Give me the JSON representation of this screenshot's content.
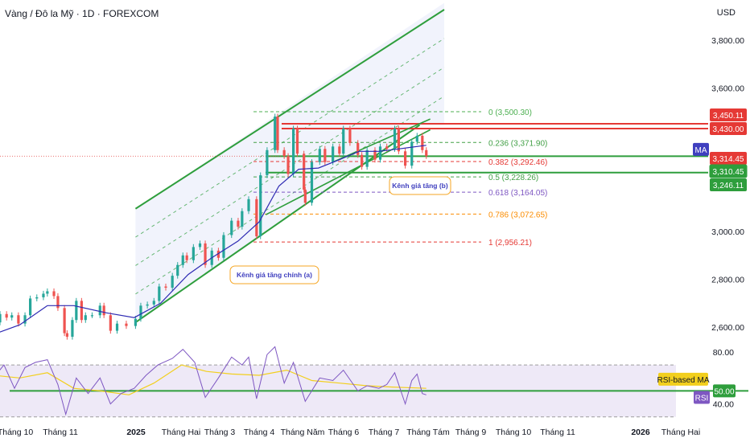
{
  "header": {
    "title": "Vàng / Đô la Mỹ · 1D · FOREXCOM",
    "currency": "USD"
  },
  "chart_data": [
    {
      "type": "line",
      "panel": "price",
      "xlabel": "",
      "ylabel": "",
      "y_axis_ticks": [
        "3,800.00",
        "3,600.00",
        "3,000.00",
        "2,800.00",
        "2,600.00"
      ],
      "y_axis_tick_values": [
        3800,
        3600,
        3000,
        2800,
        2600
      ],
      "ylim": [
        2540,
        3880
      ],
      "x_axis_labels": [
        "Tháng 10",
        "Tháng 11",
        "2025",
        "Tháng Hai",
        "Tháng 3",
        "Tháng 4",
        "Tháng Năm",
        "Tháng 6",
        "Tháng 7",
        "Tháng Tám",
        "Tháng 9",
        "Tháng 10",
        "Tháng 11",
        "2026",
        "Tháng Hai"
      ],
      "bold_x_labels": [
        "2025",
        "2026"
      ],
      "price_series": [
        {
          "d": "2024-09-20",
          "c": 2620
        },
        {
          "d": "2024-09-25",
          "c": 2655
        },
        {
          "d": "2024-09-30",
          "c": 2640
        },
        {
          "d": "2024-10-04",
          "c": 2650
        },
        {
          "d": "2024-10-09",
          "c": 2615
        },
        {
          "d": "2024-10-14",
          "c": 2650
        },
        {
          "d": "2024-10-18",
          "c": 2720
        },
        {
          "d": "2024-10-23",
          "c": 2725
        },
        {
          "d": "2024-10-28",
          "c": 2740
        },
        {
          "d": "2024-10-31",
          "c": 2750
        },
        {
          "d": "2024-11-05",
          "c": 2730
        },
        {
          "d": "2024-11-08",
          "c": 2680
        },
        {
          "d": "2024-11-13",
          "c": 2575
        },
        {
          "d": "2024-11-15",
          "c": 2560
        },
        {
          "d": "2024-11-19",
          "c": 2630
        },
        {
          "d": "2024-11-22",
          "c": 2710
        },
        {
          "d": "2024-11-26",
          "c": 2630
        },
        {
          "d": "2024-11-29",
          "c": 2650
        },
        {
          "d": "2024-12-04",
          "c": 2650
        },
        {
          "d": "2024-12-10",
          "c": 2690
        },
        {
          "d": "2024-12-13",
          "c": 2650
        },
        {
          "d": "2024-12-18",
          "c": 2585
        },
        {
          "d": "2024-12-23",
          "c": 2615
        },
        {
          "d": "2024-12-30",
          "c": 2605
        },
        {
          "d": "2025-01-06",
          "c": 2635
        },
        {
          "d": "2025-01-10",
          "c": 2690
        },
        {
          "d": "2025-01-15",
          "c": 2695
        },
        {
          "d": "2025-01-20",
          "c": 2710
        },
        {
          "d": "2025-01-24",
          "c": 2770
        },
        {
          "d": "2025-01-29",
          "c": 2765
        },
        {
          "d": "2025-02-03",
          "c": 2815
        },
        {
          "d": "2025-02-07",
          "c": 2860
        },
        {
          "d": "2025-02-11",
          "c": 2900
        },
        {
          "d": "2025-02-14",
          "c": 2880
        },
        {
          "d": "2025-02-19",
          "c": 2935
        },
        {
          "d": "2025-02-24",
          "c": 2950
        },
        {
          "d": "2025-02-28",
          "c": 2860
        },
        {
          "d": "2025-03-05",
          "c": 2920
        },
        {
          "d": "2025-03-10",
          "c": 2890
        },
        {
          "d": "2025-03-14",
          "c": 2985
        },
        {
          "d": "2025-03-20",
          "c": 3045
        },
        {
          "d": "2025-03-25",
          "c": 3020
        },
        {
          "d": "2025-03-28",
          "c": 3085
        },
        {
          "d": "2025-04-02",
          "c": 3135
        },
        {
          "d": "2025-04-08",
          "c": 2980
        },
        {
          "d": "2025-04-11",
          "c": 3235
        },
        {
          "d": "2025-04-16",
          "c": 3340
        },
        {
          "d": "2025-04-22",
          "c": 3480
        },
        {
          "d": "2025-04-24",
          "c": 3340
        },
        {
          "d": "2025-04-29",
          "c": 3315
        },
        {
          "d": "2025-05-02",
          "c": 3240
        },
        {
          "d": "2025-05-06",
          "c": 3430
        },
        {
          "d": "2025-05-09",
          "c": 3325
        },
        {
          "d": "2025-05-14",
          "c": 3175
        },
        {
          "d": "2025-05-15",
          "c": 3120
        },
        {
          "d": "2025-05-20",
          "c": 3290
        },
        {
          "d": "2025-05-26",
          "c": 3345
        },
        {
          "d": "2025-05-30",
          "c": 3290
        },
        {
          "d": "2025-06-05",
          "c": 3355
        },
        {
          "d": "2025-06-10",
          "c": 3325
        },
        {
          "d": "2025-06-13",
          "c": 3430
        },
        {
          "d": "2025-06-18",
          "c": 3370
        },
        {
          "d": "2025-06-24",
          "c": 3320
        },
        {
          "d": "2025-06-27",
          "c": 3270
        },
        {
          "d": "2025-07-01",
          "c": 3340
        },
        {
          "d": "2025-07-07",
          "c": 3300
        },
        {
          "d": "2025-07-11",
          "c": 3355
        },
        {
          "d": "2025-07-16",
          "c": 3345
        },
        {
          "d": "2025-07-22",
          "c": 3430
        },
        {
          "d": "2025-07-25",
          "c": 3335
        },
        {
          "d": "2025-07-30",
          "c": 3275
        },
        {
          "d": "2025-08-04",
          "c": 3375
        },
        {
          "d": "2025-08-08",
          "c": 3400
        },
        {
          "d": "2025-08-12",
          "c": 3340
        },
        {
          "d": "2025-08-15",
          "c": 3315
        }
      ],
      "ma_series": [
        {
          "d": "2024-09-20",
          "v": 2570
        },
        {
          "d": "2024-10-10",
          "v": 2610
        },
        {
          "d": "2024-10-31",
          "v": 2690
        },
        {
          "d": "2024-11-20",
          "v": 2690
        },
        {
          "d": "2024-12-15",
          "v": 2660
        },
        {
          "d": "2025-01-05",
          "v": 2640
        },
        {
          "d": "2025-01-25",
          "v": 2700
        },
        {
          "d": "2025-02-15",
          "v": 2820
        },
        {
          "d": "2025-03-05",
          "v": 2890
        },
        {
          "d": "2025-03-25",
          "v": 2960
        },
        {
          "d": "2025-04-10",
          "v": 3040
        },
        {
          "d": "2025-04-25",
          "v": 3190
        },
        {
          "d": "2025-05-10",
          "v": 3260
        },
        {
          "d": "2025-05-25",
          "v": 3265
        },
        {
          "d": "2025-06-10",
          "v": 3300
        },
        {
          "d": "2025-06-25",
          "v": 3335
        },
        {
          "d": "2025-07-10",
          "v": 3335
        },
        {
          "d": "2025-07-25",
          "v": 3345
        },
        {
          "d": "2025-08-15",
          "v": 3360
        }
      ],
      "channel_a": {
        "label": "Kênh giá tăng chính (a)",
        "color": "#2e9e3c",
        "lower": [
          {
            "d": "2025-01-06",
            "v": 2620
          },
          {
            "d": "2025-08-10",
            "v": 3445
          }
        ],
        "upper": [
          {
            "d": "2025-01-06",
            "v": 3095
          },
          {
            "d": "2025-09-25",
            "v": 3955
          }
        ]
      },
      "channel_b": {
        "label": "Kênh giá tăng (b)",
        "color": "#2e9e3c",
        "lower": [
          {
            "d": "2025-04-15",
            "v": 3070
          },
          {
            "d": "2025-08-18",
            "v": 3425
          }
        ],
        "upper": [
          {
            "d": "2025-06-05",
            "v": 3290
          },
          {
            "d": "2025-08-18",
            "v": 3470
          }
        ]
      },
      "fibonacci": {
        "levels": [
          {
            "label": "0 (3,500.30)",
            "value": 3500.3,
            "color": "#4caf50"
          },
          {
            "label": "0.236 (3,371.90)",
            "value": 3371.9,
            "color": "#43a047"
          },
          {
            "label": "0.382 (3,292.46)",
            "value": 3292.46,
            "color": "#e53935"
          },
          {
            "label": "0.5 (3,228.26)",
            "value": 3228.26,
            "color": "#43a047"
          },
          {
            "label": "0.618 (3,164.05)",
            "value": 3164.05,
            "color": "#7e57c2"
          },
          {
            "label": "0.786 (3,072.65)",
            "value": 3072.65,
            "color": "#fb8c00"
          },
          {
            "label": "1 (2,956.21)",
            "value": 2956.21,
            "color": "#e53935"
          }
        ]
      },
      "horizontal_levels": [
        {
          "value": 3450.11,
          "color": "#e53935"
        },
        {
          "value": 3430.0,
          "color": "#e53935"
        },
        {
          "value": 3314.45,
          "color": "#2e9e3c"
        },
        {
          "value": 3246.11,
          "color": "#2e9e3c"
        }
      ],
      "price_labels": [
        {
          "text": "3,450.11",
          "value": 3450.11,
          "color": "#e53935"
        },
        {
          "text": "3,430.00",
          "value": 3430.0,
          "color": "#e53935"
        },
        {
          "text": "3,314.45",
          "value": 3314.45,
          "color": "#e53935"
        },
        {
          "text": "3,310.45",
          "value": 3310.45,
          "color": "#2e9e3c"
        },
        {
          "text": "3,246.11",
          "value": 3246.11,
          "color": "#2e9e3c"
        }
      ],
      "ma_tag": "MA",
      "colors": {
        "up": "#26a69a",
        "down": "#ef5350",
        "ma": "#2e2ab3",
        "background_channel": "#eef0fb"
      }
    },
    {
      "type": "line",
      "panel": "rsi",
      "y_axis_ticks": [
        "80.00",
        "40.00"
      ],
      "y_axis_tick_values": [
        80,
        40
      ],
      "ylim": [
        28,
        88
      ],
      "bands": {
        "upper": 70,
        "lower": 30,
        "mid": 50
      },
      "rsi_tags": [
        {
          "text": "RSI-based MA",
          "value": 59,
          "color": "#f2cf1d"
        },
        {
          "text": "50.00",
          "value": 50,
          "color": "#2e9e3c"
        },
        {
          "text": "RSI",
          "value": 45,
          "color": "#7e57c2"
        }
      ],
      "rsi_values": [
        {
          "d": "2024-09-20",
          "v": 60
        },
        {
          "d": "2024-09-28",
          "v": 70
        },
        {
          "d": "2024-10-06",
          "v": 52
        },
        {
          "d": "2024-10-14",
          "v": 68
        },
        {
          "d": "2024-10-22",
          "v": 72
        },
        {
          "d": "2024-10-31",
          "v": 74
        },
        {
          "d": "2024-11-08",
          "v": 55
        },
        {
          "d": "2024-11-14",
          "v": 32
        },
        {
          "d": "2024-11-22",
          "v": 60
        },
        {
          "d": "2024-12-01",
          "v": 48
        },
        {
          "d": "2024-12-10",
          "v": 60
        },
        {
          "d": "2024-12-18",
          "v": 40
        },
        {
          "d": "2024-12-26",
          "v": 48
        },
        {
          "d": "2025-01-05",
          "v": 52
        },
        {
          "d": "2025-01-14",
          "v": 62
        },
        {
          "d": "2025-01-23",
          "v": 70
        },
        {
          "d": "2025-02-03",
          "v": 75
        },
        {
          "d": "2025-02-11",
          "v": 82
        },
        {
          "d": "2025-02-20",
          "v": 72
        },
        {
          "d": "2025-02-28",
          "v": 45
        },
        {
          "d": "2025-03-10",
          "v": 60
        },
        {
          "d": "2025-03-20",
          "v": 76
        },
        {
          "d": "2025-03-28",
          "v": 70
        },
        {
          "d": "2025-04-02",
          "v": 76
        },
        {
          "d": "2025-04-08",
          "v": 44
        },
        {
          "d": "2025-04-16",
          "v": 78
        },
        {
          "d": "2025-04-22",
          "v": 84
        },
        {
          "d": "2025-04-29",
          "v": 56
        },
        {
          "d": "2025-05-06",
          "v": 72
        },
        {
          "d": "2025-05-15",
          "v": 42
        },
        {
          "d": "2025-05-26",
          "v": 60
        },
        {
          "d": "2025-06-05",
          "v": 58
        },
        {
          "d": "2025-06-13",
          "v": 66
        },
        {
          "d": "2025-06-24",
          "v": 50
        },
        {
          "d": "2025-07-01",
          "v": 54
        },
        {
          "d": "2025-07-10",
          "v": 52
        },
        {
          "d": "2025-07-16",
          "v": 55
        },
        {
          "d": "2025-07-22",
          "v": 64
        },
        {
          "d": "2025-07-30",
          "v": 40
        },
        {
          "d": "2025-08-04",
          "v": 58
        },
        {
          "d": "2025-08-08",
          "v": 63
        },
        {
          "d": "2025-08-12",
          "v": 48
        },
        {
          "d": "2025-08-15",
          "v": 47
        }
      ],
      "rsi_ma_values": [
        {
          "d": "2024-09-20",
          "v": 62
        },
        {
          "d": "2024-10-10",
          "v": 60
        },
        {
          "d": "2024-10-31",
          "v": 64
        },
        {
          "d": "2024-11-20",
          "v": 52
        },
        {
          "d": "2024-12-10",
          "v": 50
        },
        {
          "d": "2025-01-01",
          "v": 47
        },
        {
          "d": "2025-01-20",
          "v": 56
        },
        {
          "d": "2025-02-10",
          "v": 70
        },
        {
          "d": "2025-03-01",
          "v": 65
        },
        {
          "d": "2025-03-20",
          "v": 63
        },
        {
          "d": "2025-04-10",
          "v": 62
        },
        {
          "d": "2025-05-01",
          "v": 66
        },
        {
          "d": "2025-05-20",
          "v": 58
        },
        {
          "d": "2025-06-10",
          "v": 56
        },
        {
          "d": "2025-07-01",
          "v": 54
        },
        {
          "d": "2025-07-20",
          "v": 53
        },
        {
          "d": "2025-08-15",
          "v": 52
        }
      ],
      "colors": {
        "rsi": "#7e57c2",
        "rsi_ma": "#f2cf1d",
        "band_fill": "#eee9f7",
        "mid_line": "#2e9e3c"
      }
    }
  ]
}
